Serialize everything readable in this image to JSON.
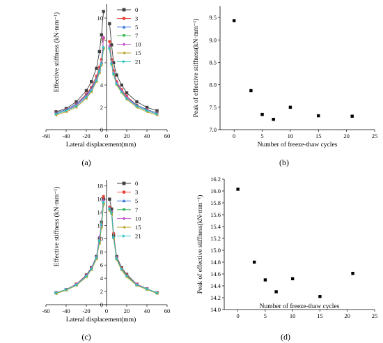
{
  "panels": [
    {
      "caption": "(a)"
    },
    {
      "caption": "(b)"
    },
    {
      "caption": "(c)"
    },
    {
      "caption": "(d)"
    }
  ],
  "chart_data": [
    {
      "type": "line",
      "xlabel": "Lateral displacement(mm)",
      "ylabel": "Effective stiffness (kN·mm⁻¹)",
      "xlim": [
        -60,
        60
      ],
      "ylim": [
        0,
        11
      ],
      "xticks": [
        -60,
        -40,
        -20,
        0,
        20,
        40,
        60
      ],
      "yticks": [
        0,
        2,
        4,
        6,
        8,
        10
      ],
      "legend": "top-center",
      "x": [
        -50,
        -40,
        -30,
        -20,
        -15,
        -10,
        -7,
        -5,
        -3,
        3,
        5,
        7,
        10,
        15,
        20,
        30,
        40,
        50
      ],
      "series": [
        {
          "name": "0",
          "color": "#404040",
          "marker": "square",
          "values": [
            1.6,
            1.9,
            2.5,
            3.5,
            4.3,
            5.5,
            7.0,
            8.5,
            10.6,
            9.5,
            7.6,
            6.0,
            4.9,
            4.0,
            3.3,
            2.5,
            2.0,
            1.7
          ]
        },
        {
          "name": "3",
          "color": "#e8433b",
          "marker": "circle",
          "values": [
            1.5,
            1.8,
            2.3,
            3.2,
            3.8,
            4.8,
            5.6,
            6.3,
            8.2,
            7.9,
            6.3,
            5.3,
            4.3,
            3.6,
            3.0,
            2.2,
            1.8,
            1.5
          ]
        },
        {
          "name": "5",
          "color": "#2f6fd6",
          "marker": "triangle-up",
          "values": [
            1.5,
            1.8,
            2.3,
            3.1,
            3.7,
            4.6,
            5.4,
            6.0,
            7.4,
            7.4,
            6.0,
            5.1,
            4.2,
            3.5,
            2.9,
            2.2,
            1.8,
            1.5
          ]
        },
        {
          "name": "7",
          "color": "#2fb04a",
          "marker": "triangle-down",
          "values": [
            1.4,
            1.7,
            2.2,
            3.0,
            3.6,
            4.5,
            5.3,
            5.9,
            7.2,
            7.2,
            5.9,
            5.0,
            4.1,
            3.4,
            2.8,
            2.1,
            1.7,
            1.4
          ]
        },
        {
          "name": "10",
          "color": "#c04fc9",
          "marker": "diamond",
          "values": [
            1.4,
            1.7,
            2.2,
            3.0,
            3.6,
            4.5,
            5.3,
            6.0,
            8.3,
            7.5,
            6.0,
            5.1,
            4.2,
            3.5,
            2.9,
            2.1,
            1.7,
            1.4
          ]
        },
        {
          "name": "15",
          "color": "#b8a020",
          "marker": "triangle-left",
          "values": [
            1.3,
            1.6,
            2.0,
            2.8,
            3.4,
            4.3,
            5.1,
            5.8,
            7.3,
            7.3,
            5.8,
            4.9,
            4.0,
            3.3,
            2.7,
            2.0,
            1.6,
            1.3
          ]
        },
        {
          "name": "21",
          "color": "#29c4c4",
          "marker": "triangle-right",
          "values": [
            1.4,
            1.7,
            2.1,
            2.9,
            3.5,
            4.4,
            5.2,
            5.9,
            7.4,
            7.3,
            5.9,
            5.0,
            4.1,
            3.4,
            2.8,
            2.1,
            1.7,
            1.4
          ]
        }
      ]
    },
    {
      "type": "scatter",
      "xlabel": "Number of freeze-thaw cycles",
      "ylabel": "Peak of effective stiffness(kN·mm⁻¹)",
      "xlim": [
        -2.5,
        25
      ],
      "ylim": [
        7.0,
        9.75
      ],
      "xticks": [
        0,
        5,
        10,
        15,
        20,
        25
      ],
      "yticks": [
        7.0,
        7.5,
        8.0,
        8.5,
        9.0,
        9.5
      ],
      "ytick_labels": [
        "7.0",
        "7.5",
        "8.0",
        "8.5",
        "9.0",
        "9.5"
      ],
      "x": [
        0,
        3,
        5,
        7,
        10,
        15,
        21
      ],
      "values": [
        9.43,
        7.87,
        7.34,
        7.23,
        7.5,
        7.31,
        7.3
      ]
    },
    {
      "type": "line",
      "xlabel": "Lateral displacement(mm)",
      "ylabel": "Effective stiffness (kN·mm⁻¹)",
      "xlim": [
        -60,
        60
      ],
      "ylim": [
        0,
        18.5
      ],
      "xticks": [
        -60,
        -40,
        -20,
        0,
        20,
        40,
        60
      ],
      "yticks": [
        0,
        2,
        4,
        6,
        8,
        10,
        12,
        14,
        16,
        18
      ],
      "legend": "top-center",
      "x": [
        -50,
        -40,
        -30,
        -20,
        -15,
        -10,
        -7,
        -5,
        -3,
        3,
        5,
        7,
        10,
        15,
        20,
        30,
        40,
        50
      ],
      "series": [
        {
          "name": "0",
          "color": "#404040",
          "marker": "square",
          "values": [
            1.8,
            2.3,
            3.1,
            4.5,
            5.6,
            7.3,
            10.0,
            12.5,
            16.0,
            16.0,
            14.5,
            10.5,
            7.3,
            5.6,
            4.6,
            3.1,
            2.4,
            1.8
          ]
        },
        {
          "name": "3",
          "color": "#e8433b",
          "marker": "circle",
          "values": [
            1.8,
            2.3,
            3.1,
            4.4,
            5.5,
            7.2,
            9.8,
            12.3,
            16.4,
            14.8,
            14.0,
            10.8,
            7.1,
            5.5,
            4.5,
            3.1,
            2.4,
            1.8
          ]
        },
        {
          "name": "5",
          "color": "#2f6fd6",
          "marker": "triangle-up",
          "values": [
            1.8,
            2.3,
            3.0,
            4.4,
            5.5,
            7.1,
            9.6,
            12.1,
            15.5,
            14.5,
            13.9,
            10.3,
            7.0,
            5.4,
            4.4,
            3.0,
            2.4,
            1.8
          ]
        },
        {
          "name": "7",
          "color": "#2fb04a",
          "marker": "triangle-down",
          "values": [
            1.7,
            2.2,
            3.0,
            4.3,
            5.4,
            7.0,
            9.5,
            11.9,
            15.3,
            14.3,
            13.8,
            10.1,
            6.9,
            5.3,
            4.3,
            3.0,
            2.3,
            1.7
          ]
        },
        {
          "name": "10",
          "color": "#c04fc9",
          "marker": "diamond",
          "values": [
            1.8,
            2.3,
            3.1,
            4.4,
            5.5,
            7.2,
            10.3,
            12.0,
            15.8,
            14.6,
            14.1,
            10.2,
            7.1,
            5.4,
            4.4,
            3.1,
            2.4,
            1.8
          ]
        },
        {
          "name": "15",
          "color": "#b8a020",
          "marker": "triangle-left",
          "values": [
            1.7,
            2.2,
            2.9,
            4.2,
            5.3,
            6.9,
            9.3,
            11.7,
            15.2,
            14.2,
            13.7,
            10.0,
            6.8,
            5.2,
            4.2,
            2.9,
            2.3,
            1.7
          ]
        },
        {
          "name": "21",
          "color": "#29c4c4",
          "marker": "triangle-right",
          "values": [
            1.8,
            2.3,
            3.0,
            4.3,
            5.4,
            7.1,
            9.7,
            12.2,
            15.6,
            14.6,
            14.0,
            10.2,
            7.0,
            5.4,
            4.4,
            3.0,
            2.4,
            1.8
          ]
        }
      ]
    },
    {
      "type": "scatter",
      "xlabel": "Number of freeze-thaw cycles",
      "ylabel": "Peak of effective stiffness(kN·mm⁻¹)",
      "xlim": [
        -2.5,
        25
      ],
      "ylim": [
        14.0,
        16.2
      ],
      "xticks": [
        0,
        5,
        10,
        15,
        20,
        25
      ],
      "yticks": [
        14.0,
        14.2,
        14.4,
        14.6,
        14.8,
        15.0,
        15.2,
        15.4,
        15.6,
        15.8,
        16.0,
        16.2
      ],
      "ytick_labels": [
        "14.0",
        "14.2",
        "14.4",
        "14.6",
        "14.8",
        "15.0",
        "15.2",
        "15.4",
        "15.6",
        "15.8",
        "16.0",
        "16.2"
      ],
      "x": [
        0,
        3,
        5,
        7,
        10,
        15,
        21
      ],
      "values": [
        16.03,
        14.8,
        14.5,
        14.3,
        14.52,
        14.22,
        14.61
      ]
    }
  ]
}
